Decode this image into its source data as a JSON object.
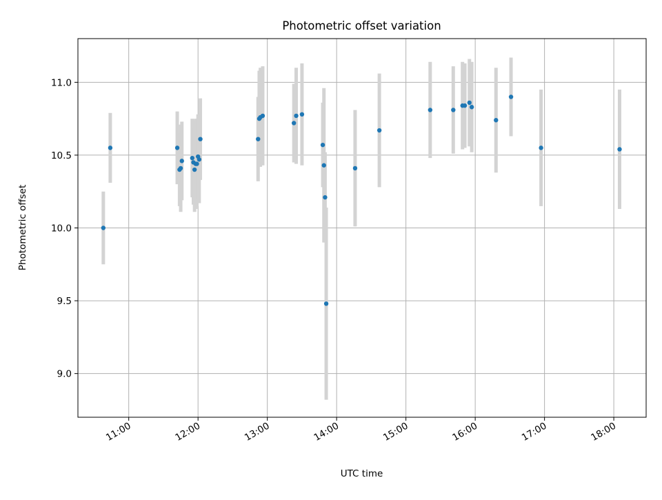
{
  "chart_data": {
    "type": "scatter",
    "title": "Photometric offset variation",
    "xlabel": "UTC time",
    "ylabel": "Photometric offset",
    "x_unit": "time of day (UTC)",
    "xlim": [
      "10:16",
      "18:28"
    ],
    "ylim": [
      8.7,
      11.3
    ],
    "x_ticks": [
      "11:00",
      "12:00",
      "13:00",
      "14:00",
      "15:00",
      "16:00",
      "17:00",
      "18:00"
    ],
    "y_ticks": [
      "9.0",
      "9.5",
      "10.0",
      "10.5",
      "11.0"
    ],
    "grid": true,
    "legend": "none",
    "colors": {
      "points": "#1f77b4",
      "error_bars": "#d3d3d3",
      "grid": "#b0b0b0"
    },
    "points": [
      {
        "time": "10:38",
        "y": 10.0,
        "err": 0.25
      },
      {
        "time": "10:44",
        "y": 10.55,
        "err": 0.24
      },
      {
        "time": "11:42",
        "y": 10.55,
        "err": 0.25
      },
      {
        "time": "11:44",
        "y": 10.4,
        "err": 0.25
      },
      {
        "time": "11:45",
        "y": 10.41,
        "err": 0.3
      },
      {
        "time": "11:46",
        "y": 10.46,
        "err": 0.27
      },
      {
        "time": "11:55",
        "y": 10.48,
        "err": 0.27
      },
      {
        "time": "11:56",
        "y": 10.45,
        "err": 0.29
      },
      {
        "time": "11:57",
        "y": 10.4,
        "err": 0.29
      },
      {
        "time": "11:58",
        "y": 10.44,
        "err": 0.31
      },
      {
        "time": "11:59",
        "y": 10.44,
        "err": 0.29
      },
      {
        "time": "12:00",
        "y": 10.49,
        "err": 0.29
      },
      {
        "time": "12:01",
        "y": 10.47,
        "err": 0.3
      },
      {
        "time": "12:02",
        "y": 10.61,
        "err": 0.28
      },
      {
        "time": "12:52",
        "y": 10.61,
        "err": 0.29
      },
      {
        "time": "12:53",
        "y": 10.75,
        "err": 0.33
      },
      {
        "time": "12:54",
        "y": 10.76,
        "err": 0.34
      },
      {
        "time": "12:56",
        "y": 10.77,
        "err": 0.34
      },
      {
        "time": "13:23",
        "y": 10.72,
        "err": 0.27
      },
      {
        "time": "13:25",
        "y": 10.77,
        "err": 0.33
      },
      {
        "time": "13:30",
        "y": 10.78,
        "err": 0.35
      },
      {
        "time": "13:48",
        "y": 10.57,
        "err": 0.29
      },
      {
        "time": "13:49",
        "y": 10.43,
        "err": 0.53
      },
      {
        "time": "13:50",
        "y": 10.21,
        "err": 0.31
      },
      {
        "time": "13:51",
        "y": 9.48,
        "err": 0.66
      },
      {
        "time": "14:16",
        "y": 10.41,
        "err": 0.4
      },
      {
        "time": "14:37",
        "y": 10.67,
        "err": 0.39
      },
      {
        "time": "15:21",
        "y": 10.81,
        "err": 0.33
      },
      {
        "time": "15:41",
        "y": 10.81,
        "err": 0.3
      },
      {
        "time": "15:49",
        "y": 10.84,
        "err": 0.3
      },
      {
        "time": "15:51",
        "y": 10.84,
        "err": 0.29
      },
      {
        "time": "15:55",
        "y": 10.86,
        "err": 0.3
      },
      {
        "time": "15:57",
        "y": 10.83,
        "err": 0.31
      },
      {
        "time": "16:18",
        "y": 10.74,
        "err": 0.36
      },
      {
        "time": "16:31",
        "y": 10.9,
        "err": 0.27
      },
      {
        "time": "16:57",
        "y": 10.55,
        "err": 0.4
      },
      {
        "time": "18:05",
        "y": 10.54,
        "err": 0.41
      }
    ]
  }
}
